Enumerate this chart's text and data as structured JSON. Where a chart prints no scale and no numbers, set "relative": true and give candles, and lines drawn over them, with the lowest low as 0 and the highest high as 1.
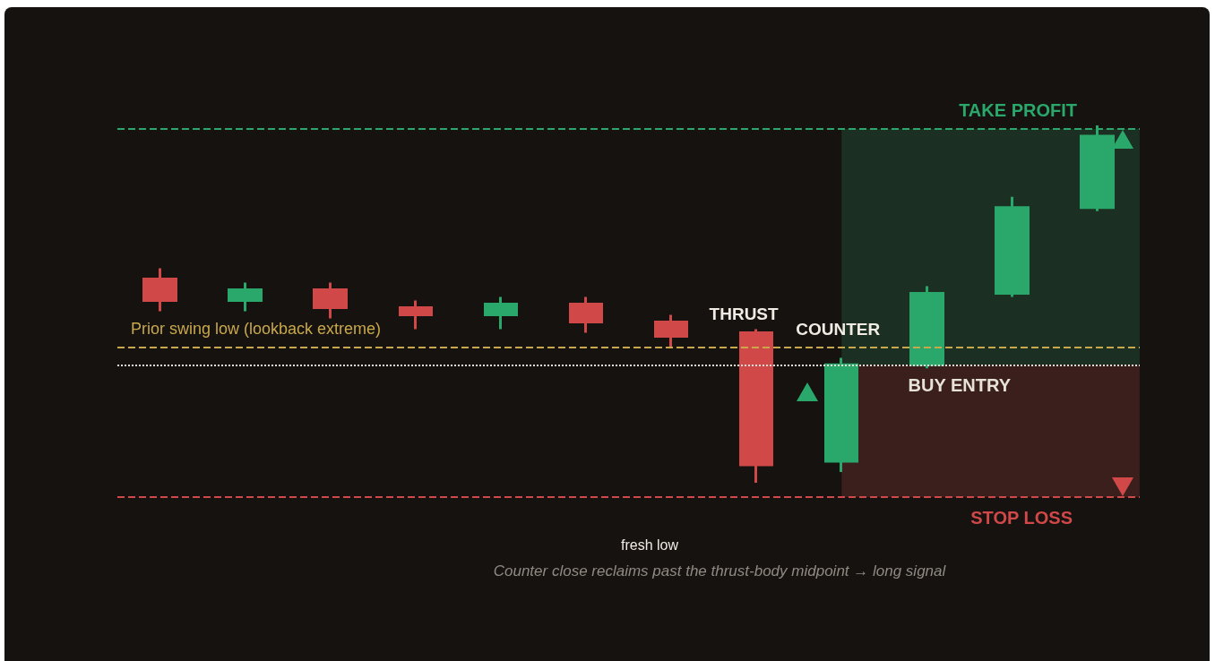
{
  "chart_data": {
    "type": "candlestick",
    "relative": true,
    "categories": [
      null,
      null,
      null,
      null,
      null,
      null,
      null,
      null,
      null,
      null,
      null,
      null
    ],
    "ohlc": [
      [
        0.57,
        0.6,
        0.48,
        0.51
      ],
      [
        0.51,
        0.56,
        0.48,
        0.54
      ],
      [
        0.54,
        0.56,
        0.46,
        0.49
      ],
      [
        0.49,
        0.51,
        0.43,
        0.47
      ],
      [
        0.47,
        0.52,
        0.43,
        0.5
      ],
      [
        0.5,
        0.52,
        0.42,
        0.45
      ],
      [
        0.45,
        0.47,
        0.38,
        0.41
      ],
      [
        0.42,
        0.43,
        0.0,
        0.05
      ],
      [
        0.06,
        0.35,
        0.03,
        0.33
      ],
      [
        0.33,
        0.55,
        0.32,
        0.53
      ],
      [
        0.53,
        0.8,
        0.52,
        0.77
      ],
      [
        0.77,
        1.0,
        0.76,
        0.97
      ]
    ],
    "colors": [
      "#d04848",
      "#2aa86b",
      "#d04848",
      "#d04848",
      "#2aa86b",
      "#d04848",
      "#d04848",
      "#d04848",
      "#2aa86b",
      "#2aa86b",
      "#2aa86b",
      "#2aa86b"
    ],
    "ref_lines": [
      {
        "axis": "y",
        "value": 0.99,
        "label": "TAKE PROFIT",
        "color": "#2aa86b",
        "line_style": "dashed"
      },
      {
        "axis": "y",
        "value": 0.38,
        "label": "Prior swing low (lookback extreme)",
        "color": "#c9a84a",
        "line_style": "dashed"
      },
      {
        "axis": "y",
        "value": 0.33,
        "label": "BUY ENTRY",
        "color": "#e6e2da",
        "line_style": "dotted"
      },
      {
        "axis": "y",
        "value": -0.04,
        "label": "STOP LOSS",
        "color": "#d04848",
        "line_style": "dashed"
      }
    ],
    "bands": [
      {
        "axis": "y",
        "from": 0.33,
        "to": 0.99,
        "color": "#1b3022"
      },
      {
        "axis": "y",
        "from": -0.04,
        "to": 0.33,
        "color": "#3a1f1c"
      }
    ],
    "annotations": [
      "THRUST",
      "COUNTER",
      "fresh low",
      "Counter close reclaims past the thrust-body midpoint → long signal"
    ]
  }
}
